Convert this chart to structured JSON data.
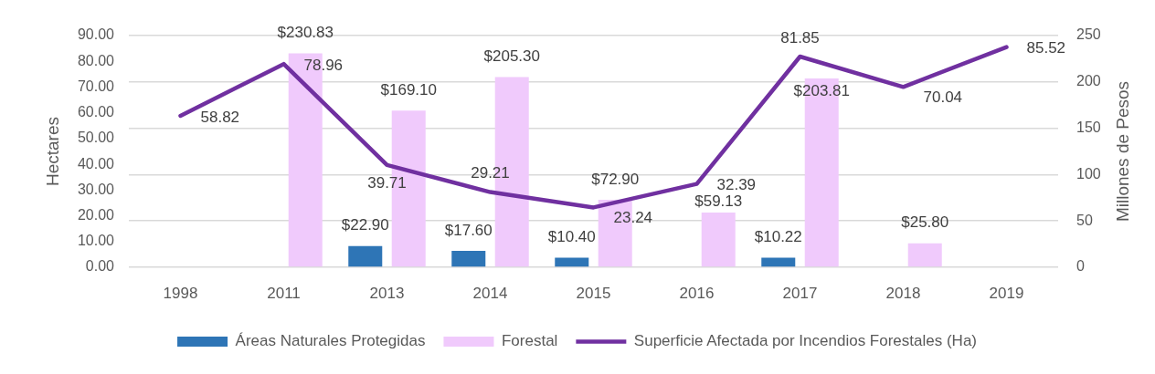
{
  "chart_data": {
    "type": "bar",
    "categories": [
      "1998",
      "2011",
      "2013",
      "2014",
      "2015",
      "2016",
      "2017",
      "2018",
      "2019"
    ],
    "ylabel": "Hectares",
    "y2label": "Millones de Pesos",
    "series": [
      {
        "name": "Áreas Naturales Protegidas",
        "axis": "y2",
        "color": "#2e75b6",
        "values": [
          null,
          null,
          22.9,
          17.6,
          10.4,
          null,
          10.22,
          null,
          null
        ],
        "value_labels": [
          null,
          null,
          "$22.90",
          "$17.60",
          "$10.40",
          null,
          "$10.22",
          null,
          null
        ]
      },
      {
        "name": "Forestal",
        "axis": "y2",
        "color": "#f0cafc",
        "values": [
          null,
          230.83,
          169.1,
          205.3,
          72.9,
          59.13,
          203.81,
          25.8,
          null
        ],
        "value_labels": [
          null,
          "$230.83",
          "$169.10",
          "$205.30",
          "$72.90",
          "$59.13",
          "$203.81",
          "$25.80",
          null
        ]
      },
      {
        "name": "Superficie Afectada por Incendios Forestales (Ha)",
        "type": "line",
        "color": "#7030a0",
        "values": [
          58.82,
          78.96,
          39.71,
          29.21,
          23.24,
          32.39,
          81.85,
          70.04,
          85.52
        ],
        "value_labels": [
          "58.82",
          "78.96",
          "39.71",
          "29.21",
          "23.24",
          "32.39",
          "81.85",
          "70.04",
          "85.52"
        ]
      }
    ],
    "ylim": [
      0,
      90
    ],
    "yticks": [
      {
        "value": 0,
        "label": "0.00"
      },
      {
        "value": 10,
        "label": "10.00"
      },
      {
        "value": 20,
        "label": "20.00"
      },
      {
        "value": 30,
        "label": "30.00"
      },
      {
        "value": 40,
        "label": "40.00"
      },
      {
        "value": 50,
        "label": "50.00"
      },
      {
        "value": 60,
        "label": "60.00"
      },
      {
        "value": 70,
        "label": "70.00"
      },
      {
        "value": 80,
        "label": "80.00"
      },
      {
        "value": 90,
        "label": "90.00"
      }
    ],
    "y2lim": [
      0,
      250
    ],
    "y2ticks": [
      0,
      50,
      100,
      150,
      200,
      250
    ],
    "grid": "y2",
    "legend": "bottom"
  }
}
